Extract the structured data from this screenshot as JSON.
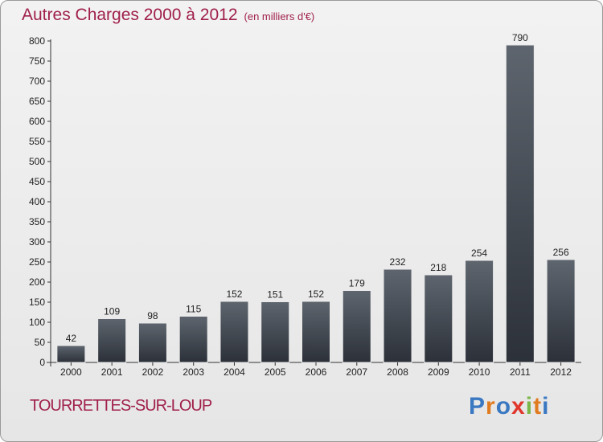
{
  "header": {
    "title": "Autres Charges 2000 à 2012",
    "subtitle": "(en milliers d'€)"
  },
  "footer": {
    "commune": "TOURRETTES-SUR-LOUP",
    "brand": "Proxiti"
  },
  "colors": {
    "title": "#a0204a",
    "bar_top": "#5e656e",
    "bar_bottom": "#2c3139",
    "brand_letters": [
      "#3a78c2",
      "#e07b1f",
      "#3a78c2",
      "#e0362c",
      "#7ab648",
      "#e07b1f",
      "#3a78c2"
    ]
  },
  "chart_data": {
    "type": "bar",
    "title": "Autres Charges 2000 à 2012",
    "subtitle": "(en milliers d'€)",
    "categories": [
      "2000",
      "2001",
      "2002",
      "2003",
      "2004",
      "2005",
      "2006",
      "2007",
      "2008",
      "2009",
      "2010",
      "2011",
      "2012"
    ],
    "values": [
      42,
      109,
      98,
      115,
      152,
      151,
      152,
      179,
      232,
      218,
      254,
      790,
      256
    ],
    "ylim": [
      0,
      800
    ],
    "yticks": [
      0,
      50,
      100,
      150,
      200,
      250,
      300,
      350,
      400,
      450,
      500,
      550,
      600,
      650,
      700,
      750,
      800
    ],
    "grid": false,
    "legend": "none"
  }
}
